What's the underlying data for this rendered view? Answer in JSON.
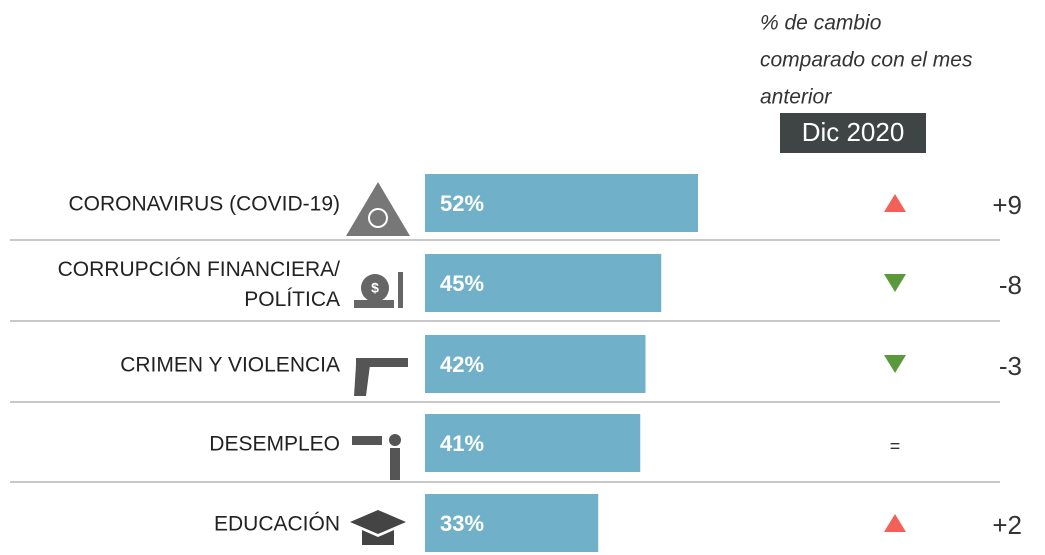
{
  "chart_data": {
    "type": "bar",
    "header_note": [
      "% de cambio",
      "comparado con el mes",
      "anterior"
    ],
    "period": "Dic 2020",
    "categories": [
      "CORONAVIRUS (COVID-19)",
      "CORRUPCIÓN FINANCIERA/\nPOLÍTICA",
      "CRIMEN Y VIOLENCIA",
      "DESEMPLEO",
      "EDUCACIÓN"
    ],
    "values": [
      52,
      45,
      42,
      41,
      33
    ],
    "value_labels": [
      "52%",
      "45%",
      "42%",
      "41%",
      "33%"
    ],
    "color": "#70b0c8",
    "changes": [
      9,
      -8,
      -3,
      0,
      2
    ],
    "change_labels": [
      "+9",
      "-8",
      "-3",
      "=",
      "+2"
    ],
    "up_color": "#f2605a",
    "down_color": "#5a9a3a"
  }
}
